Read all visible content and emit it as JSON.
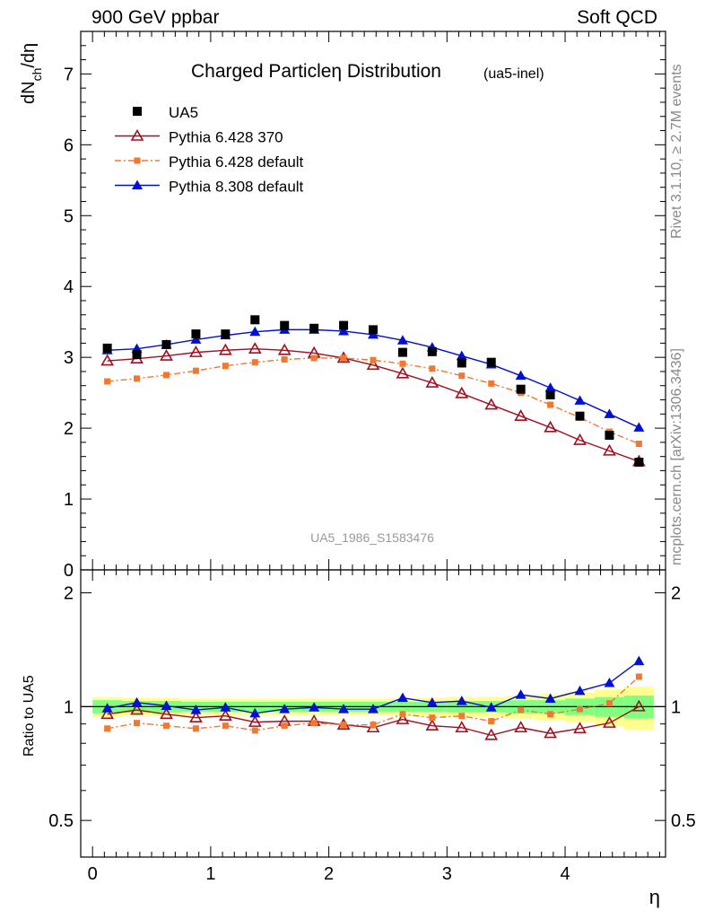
{
  "header": {
    "left": "900 GeV ppbar",
    "right": "Soft QCD"
  },
  "side_labels": {
    "rivet": "Rivet 3.1.10, ≥ 2.7M events",
    "mcplots": "mcplots.cern.ch [arXiv:1306.3436]"
  },
  "chart_data": {
    "type": "scatter",
    "title": "Charged Particleη Distribution",
    "title_suffix": "(ua5-inel)",
    "watermark": "UA5_1986_S1583476",
    "xlabel": "η",
    "ylabel": "dN_ch/dη",
    "ylabel_main": "dN",
    "ylabel_sub": "ch",
    "ylabel_tail": "/dη",
    "ratio_ylabel": "Ratio to UA5",
    "xlim": [
      -0.1,
      4.85
    ],
    "ylim": [
      0,
      7.6
    ],
    "ratio_ylim": [
      0.4,
      2.3
    ],
    "ratio_log": true,
    "x_ticks": [
      "0",
      "1",
      "2",
      "3",
      "4"
    ],
    "y_ticks": [
      "0",
      "1",
      "2",
      "3",
      "4",
      "5",
      "6",
      "7"
    ],
    "ratio_ticks": [
      "0.5",
      "1",
      "2"
    ],
    "x": [
      0.125,
      0.375,
      0.625,
      0.875,
      1.125,
      1.375,
      1.625,
      1.875,
      2.125,
      2.375,
      2.625,
      2.875,
      3.125,
      3.375,
      3.625,
      3.875,
      4.125,
      4.375,
      4.625
    ],
    "data": {
      "name": "UA5",
      "values": [
        3.13,
        3.04,
        3.18,
        3.33,
        3.33,
        3.53,
        3.45,
        3.41,
        3.45,
        3.39,
        3.07,
        3.08,
        2.92,
        2.93,
        2.55,
        2.47,
        2.17,
        1.9,
        1.52
      ]
    },
    "series": [
      {
        "name": "Pythia 6.428 370",
        "color": "#a01020",
        "marker": "open-triangle",
        "values": [
          2.95,
          2.98,
          3.02,
          3.07,
          3.1,
          3.12,
          3.1,
          3.06,
          2.99,
          2.89,
          2.77,
          2.64,
          2.49,
          2.33,
          2.17,
          2.01,
          1.83,
          1.68,
          1.53
        ]
      },
      {
        "name": "Pythia 6.428 default",
        "color": "#f07830",
        "marker": "square",
        "values": [
          2.66,
          2.7,
          2.75,
          2.81,
          2.88,
          2.93,
          2.97,
          2.99,
          2.99,
          2.96,
          2.91,
          2.84,
          2.74,
          2.63,
          2.5,
          2.33,
          2.15,
          1.95,
          1.78
        ]
      },
      {
        "name": "Pythia 8.308 default",
        "color": "#0010d0",
        "marker": "filled-triangle",
        "values": [
          3.1,
          3.12,
          3.18,
          3.25,
          3.31,
          3.36,
          3.39,
          3.39,
          3.37,
          3.32,
          3.24,
          3.14,
          3.02,
          2.9,
          2.74,
          2.57,
          2.39,
          2.2,
          2.01
        ]
      }
    ],
    "ratio_series": [
      {
        "name": "Pythia 6.428 370",
        "values": [
          0.955,
          0.98,
          0.955,
          0.935,
          0.945,
          0.91,
          0.915,
          0.915,
          0.895,
          0.88,
          0.925,
          0.89,
          0.88,
          0.84,
          0.88,
          0.85,
          0.875,
          0.905,
          1.0
        ]
      },
      {
        "name": "Pythia 6.428 default",
        "values": [
          0.875,
          0.905,
          0.89,
          0.875,
          0.89,
          0.865,
          0.89,
          0.905,
          0.895,
          0.895,
          0.955,
          0.935,
          0.945,
          0.915,
          0.98,
          0.955,
          0.985,
          1.02,
          1.2
        ]
      },
      {
        "name": "Pythia 8.308 default",
        "values": [
          0.99,
          1.025,
          1.005,
          0.98,
          0.995,
          0.96,
          0.985,
          0.995,
          0.985,
          0.985,
          1.055,
          1.025,
          1.035,
          0.995,
          1.075,
          1.05,
          1.1,
          1.155,
          1.32
        ]
      }
    ],
    "band_inner": [
      0.04,
      0.035,
      0.035,
      0.03,
      0.03,
      0.03,
      0.03,
      0.03,
      0.03,
      0.03,
      0.03,
      0.03,
      0.035,
      0.035,
      0.04,
      0.04,
      0.05,
      0.06,
      0.07
    ],
    "band_outer": [
      0.06,
      0.055,
      0.055,
      0.05,
      0.05,
      0.05,
      0.05,
      0.05,
      0.05,
      0.05,
      0.05,
      0.055,
      0.06,
      0.06,
      0.07,
      0.08,
      0.09,
      0.11,
      0.13
    ],
    "band_colors": {
      "inner": "#80ff80",
      "outer": "#ffff90"
    }
  }
}
